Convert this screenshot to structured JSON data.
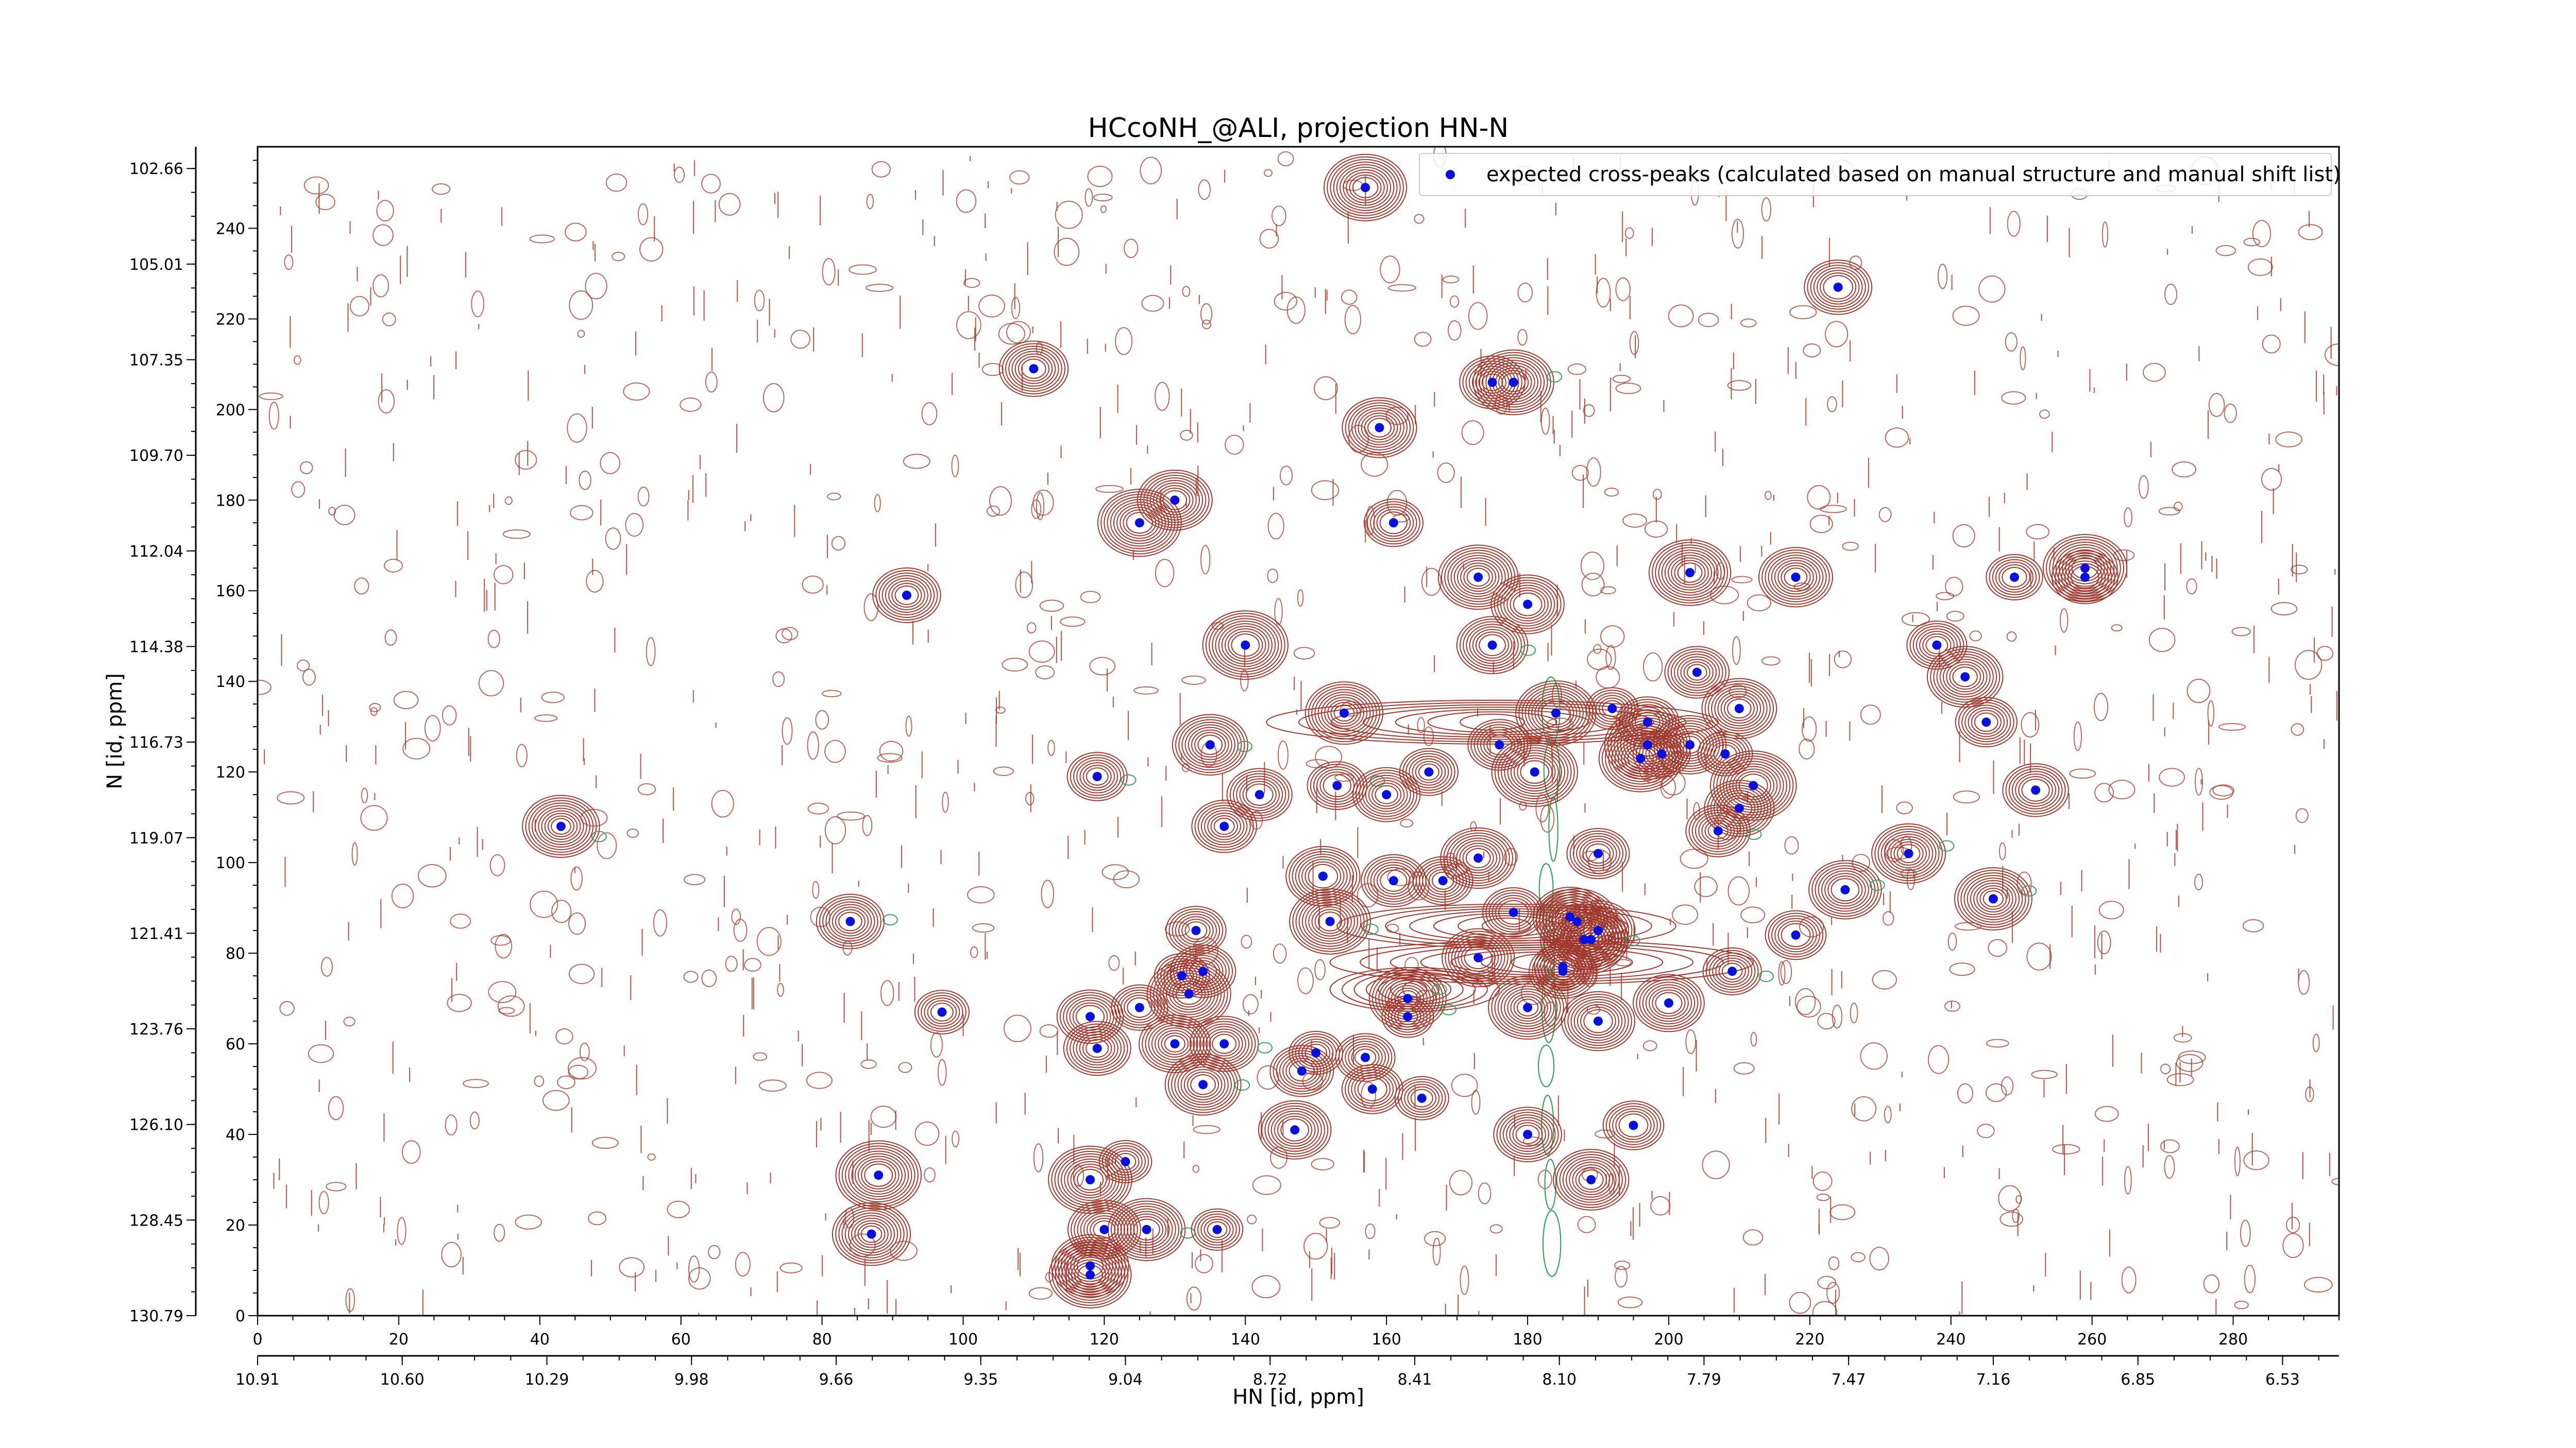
{
  "chart_data": {
    "type": "scatter",
    "title": "HCcoNH_@ALI, projection HN-N",
    "xlabel": "HN [id, ppm]",
    "ylabel": "N [id, ppm]",
    "x_index_range": [
      0,
      295
    ],
    "y_index_range": [
      0,
      258
    ],
    "x_index_ticks": [
      "0",
      "20",
      "40",
      "60",
      "80",
      "100",
      "120",
      "140",
      "160",
      "180",
      "200",
      "220",
      "240",
      "260",
      "280"
    ],
    "y_index_ticks": [
      "0",
      "20",
      "40",
      "60",
      "80",
      "100",
      "120",
      "140",
      "160",
      "180",
      "200",
      "220",
      "240"
    ],
    "x_ppm_ticks": [
      "10.91",
      "10.60",
      "10.29",
      "9.98",
      "9.66",
      "9.35",
      "9.04",
      "8.72",
      "8.41",
      "8.10",
      "7.79",
      "7.47",
      "7.16",
      "6.85",
      "6.53"
    ],
    "y_ppm_ticks": [
      "130.79",
      "128.45",
      "126.10",
      "123.76",
      "121.41",
      "119.07",
      "116.73",
      "114.38",
      "112.04",
      "109.70",
      "107.35",
      "105.01",
      "102.66"
    ],
    "colors": {
      "positive_contour": "#a0392e",
      "negative_contour": "#3aa060",
      "marker": "#0a10e0"
    },
    "series": [
      {
        "name": "expected cross-peaks (calculated based on manual structure and manual shift list)",
        "points": [
          [
            157,
            249
          ],
          [
            224,
            227
          ],
          [
            110,
            209
          ],
          [
            175,
            206
          ],
          [
            178,
            206
          ],
          [
            159,
            196
          ],
          [
            161,
            175
          ],
          [
            130,
            180
          ],
          [
            125,
            175
          ],
          [
            173,
            163
          ],
          [
            203,
            164
          ],
          [
            218,
            163
          ],
          [
            249,
            163
          ],
          [
            259,
            163
          ],
          [
            259,
            165
          ],
          [
            92,
            159
          ],
          [
            180,
            157
          ],
          [
            140,
            148
          ],
          [
            175,
            148
          ],
          [
            238,
            148
          ],
          [
            242,
            141
          ],
          [
            204,
            142
          ],
          [
            245,
            131
          ],
          [
            184,
            133
          ],
          [
            192,
            134
          ],
          [
            197,
            131
          ],
          [
            210,
            134
          ],
          [
            154,
            133
          ],
          [
            135,
            126
          ],
          [
            176,
            126
          ],
          [
            197,
            126
          ],
          [
            203,
            126
          ],
          [
            208,
            124
          ],
          [
            196,
            123
          ],
          [
            199,
            124
          ],
          [
            119,
            119
          ],
          [
            166,
            120
          ],
          [
            181,
            120
          ],
          [
            142,
            115
          ],
          [
            153,
            117
          ],
          [
            160,
            115
          ],
          [
            210,
            112
          ],
          [
            212,
            117
          ],
          [
            252,
            116
          ],
          [
            137,
            108
          ],
          [
            207,
            107
          ],
          [
            173,
            101
          ],
          [
            190,
            102
          ],
          [
            234,
            102
          ],
          [
            246,
            92
          ],
          [
            43,
            108
          ],
          [
            151,
            97
          ],
          [
            161,
            96
          ],
          [
            168,
            96
          ],
          [
            225,
            94
          ],
          [
            84,
            87
          ],
          [
            152,
            87
          ],
          [
            133,
            85
          ],
          [
            178,
            89
          ],
          [
            186,
            88
          ],
          [
            187,
            87
          ],
          [
            188,
            83
          ],
          [
            189,
            83
          ],
          [
            190,
            85
          ],
          [
            218,
            84
          ],
          [
            185,
            76
          ],
          [
            209,
            76
          ],
          [
            134,
            76
          ],
          [
            131,
            75
          ],
          [
            125,
            68
          ],
          [
            132,
            71
          ],
          [
            173,
            79
          ],
          [
            185,
            77
          ],
          [
            163,
            70
          ],
          [
            180,
            68
          ],
          [
            200,
            69
          ],
          [
            97,
            67
          ],
          [
            118,
            66
          ],
          [
            163,
            66
          ],
          [
            190,
            65
          ],
          [
            119,
            59
          ],
          [
            130,
            60
          ],
          [
            137,
            60
          ],
          [
            148,
            54
          ],
          [
            150,
            58
          ],
          [
            157,
            57
          ],
          [
            134,
            51
          ],
          [
            158,
            50
          ],
          [
            165,
            48
          ],
          [
            147,
            41
          ],
          [
            180,
            40
          ],
          [
            195,
            42
          ],
          [
            123,
            34
          ],
          [
            88,
            31
          ],
          [
            118,
            30
          ],
          [
            189,
            30
          ],
          [
            120,
            19
          ],
          [
            126,
            19
          ],
          [
            136,
            19
          ],
          [
            87,
            18
          ],
          [
            118,
            11
          ],
          [
            118,
            9
          ]
        ]
      }
    ]
  }
}
